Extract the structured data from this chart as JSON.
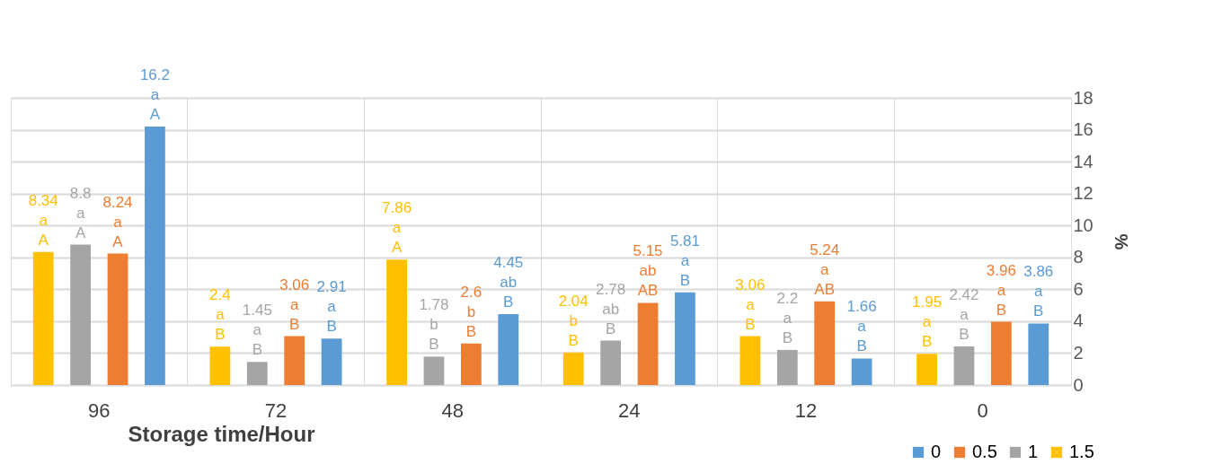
{
  "chart_data": {
    "type": "bar",
    "xlabel": "Storage time/Hour",
    "ylabel": "%",
    "categories": [
      "96",
      "72",
      "48",
      "24",
      "12",
      "0"
    ],
    "series": [
      {
        "name": "1.5",
        "color": "#ffc000",
        "values": [
          8.34,
          2.4,
          7.86,
          2.04,
          3.06,
          1.95
        ],
        "value_labels": [
          "8.34\na\nA",
          "2.4\na\nB",
          "7.86\na\nA",
          "2.04\nb\nB",
          "3.06\na\nB",
          "1.95\na\nB"
        ]
      },
      {
        "name": "1",
        "color": "#a5a5a5",
        "values": [
          8.8,
          1.45,
          1.78,
          2.78,
          2.2,
          2.42
        ],
        "value_labels": [
          "8.8\na\nA",
          "1.45\na\nB",
          "1.78\nb\nB",
          "2.78\nab\nB",
          "2.2\na\nB",
          "2.42\na\nB"
        ]
      },
      {
        "name": "0.5",
        "color": "#ed7d31",
        "values": [
          8.24,
          3.06,
          2.6,
          5.15,
          5.24,
          3.96
        ],
        "value_labels": [
          "8.24\na\nA",
          "3.06\na\nB",
          "2.6\nb\nB",
          "5.15\nab\nAB",
          "5.24\na\nAB",
          "3.96\na\nB"
        ]
      },
      {
        "name": "0",
        "color": "#5b9bd5",
        "values": [
          16.2,
          2.91,
          4.45,
          5.81,
          1.66,
          3.86
        ],
        "value_labels": [
          "16.2\na\nA",
          "2.91\na\nB",
          "4.45\nab\nB",
          "5.81\na\nB",
          "1.66\na\nB",
          "3.86\na\nB"
        ]
      }
    ],
    "ylim": [
      0,
      18
    ],
    "yticks": [
      0,
      2,
      4,
      6,
      8,
      10,
      12,
      14,
      16,
      18
    ],
    "grid": true,
    "legend": "bottom right"
  }
}
